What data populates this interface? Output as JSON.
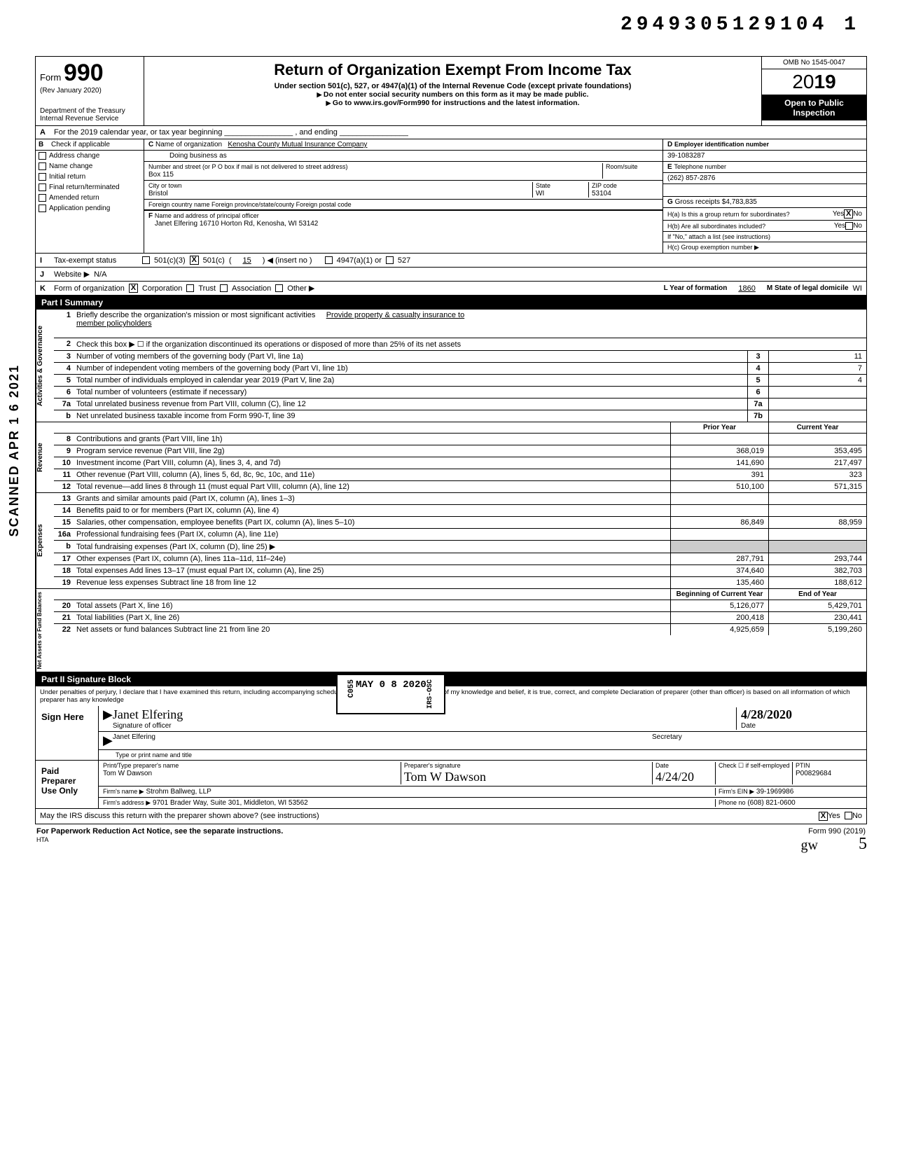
{
  "doc_id": "2949305129104 1",
  "form": {
    "number": "990",
    "prefix": "Form",
    "rev": "(Rev January 2020)",
    "dept": "Department of the Treasury",
    "irs": "Internal Revenue Service"
  },
  "header": {
    "title": "Return of Organization Exempt From Income Tax",
    "sub1": "Under section 501(c), 527, or 4947(a)(1) of the Internal Revenue Code (except private foundations)",
    "sub2": "Do not enter social security numbers on this form as it may be made public.",
    "sub3": "Go to www.irs.gov/Form990 for instructions and the latest information.",
    "omb": "OMB No 1545-0047",
    "year_outline": "20",
    "year_bold": "19",
    "open1": "Open to Public",
    "open2": "Inspection"
  },
  "lineA": "For the 2019 calendar year, or tax year beginning ________________ , and ending ________________",
  "colB": {
    "hdr": "Check if applicable",
    "items": [
      "Address change",
      "Name change",
      "Initial return",
      "Final return/terminated",
      "Amended return",
      "Application pending"
    ],
    "letter": "B"
  },
  "colC": {
    "letter": "C",
    "name_lbl": "Name of organization",
    "name": "Kenosha County Mutual Insurance Company",
    "dba_lbl": "Doing business as",
    "addr_lbl": "Number and street (or P O box if mail is not delivered to street address)",
    "room_lbl": "Room/suite",
    "addr": "Box 115",
    "city_lbl": "City or town",
    "city": "Bristol",
    "state_lbl": "State",
    "state": "WI",
    "zip_lbl": "ZIP code",
    "zip": "53104",
    "foreign_lbl": "Foreign country name        Foreign province/state/county        Foreign postal code",
    "F_lbl": "Name and address of principal officer",
    "F_letter": "F",
    "F_val": "Janet Elfering 16710 Horton Rd, Kenosha, WI  53142"
  },
  "colD": {
    "D": "D",
    "ein_lbl": "Employer identification number",
    "ein": "39-1083287",
    "E": "E",
    "tel_lbl": "Telephone number",
    "tel": "(262) 857-2876",
    "G": "G",
    "gross_lbl": "Gross receipts $",
    "gross": "4,783,835",
    "Ha_lbl": "H(a) Is this a group return for subordinates?",
    "Ha_yes": "Yes",
    "Ha_X": "X",
    "Ha_no": "No",
    "Hb_lbl": "H(b) Are all subordinates included?",
    "Hb_yes": "Yes",
    "Hb_no": "No",
    "Hb_note": "If \"No,\" attach a list (see instructions)",
    "Hc_lbl": "H(c) Group exemption number ▶"
  },
  "rowI": {
    "letter": "I",
    "lbl": "Tax-exempt status",
    "opt1": "501(c)(3)",
    "opt2_X": "X",
    "opt2": "501(c)",
    "opt2_num": "15",
    "opt2_tail": ") ◀ (insert no )",
    "opt3": "4947(a)(1) or",
    "opt4": "527"
  },
  "rowJ": {
    "letter": "J",
    "lbl": "Website ▶",
    "val": "N/A"
  },
  "rowK": {
    "letter": "K",
    "lbl": "Form of organization",
    "corp_X": "X",
    "corp": "Corporation",
    "trust": "Trust",
    "assoc": "Association",
    "other": "Other ▶",
    "L_lbl": "L Year of formation",
    "L_val": "1860",
    "M_lbl": "M State of legal domicile",
    "M_val": "WI"
  },
  "part1": {
    "title": "Part I    Summary",
    "sections": {
      "gov": {
        "label": "Activities & Governance",
        "lines": [
          {
            "n": "1",
            "t": "Briefly describe the organization's mission or most significant activities",
            "tail": "Provide property & casualty insurance to",
            "tail2": "member policyholders"
          },
          {
            "n": "2",
            "t": "Check this box ▶ ☐ if the organization discontinued its operations or disposed of more than 25% of its net assets"
          },
          {
            "n": "3",
            "t": "Number of voting members of the governing body (Part VI, line 1a)",
            "box": "3",
            "val": "11"
          },
          {
            "n": "4",
            "t": "Number of independent voting members of the governing body (Part VI, line 1b)",
            "box": "4",
            "val": "7"
          },
          {
            "n": "5",
            "t": "Total number of individuals employed in calendar year 2019 (Part V, line 2a)",
            "box": "5",
            "val": "4"
          },
          {
            "n": "6",
            "t": "Total number of volunteers (estimate if necessary)",
            "box": "6",
            "val": ""
          },
          {
            "n": "7a",
            "t": "Total unrelated business revenue from Part VIII, column (C), line 12",
            "box": "7a",
            "val": ""
          },
          {
            "n": "b",
            "t": "Net unrelated business taxable income from Form 990-T, line 39",
            "box": "7b",
            "val": ""
          }
        ]
      },
      "rev": {
        "label": "Revenue",
        "hdr_prior": "Prior Year",
        "hdr_curr": "Current Year",
        "lines": [
          {
            "n": "8",
            "t": "Contributions and grants (Part VIII, line 1h)",
            "p": "",
            "c": ""
          },
          {
            "n": "9",
            "t": "Program service revenue (Part VIII, line 2g)",
            "p": "368,019",
            "c": "353,495"
          },
          {
            "n": "10",
            "t": "Investment income (Part VIII, column (A), lines 3, 4, and 7d)",
            "p": "141,690",
            "c": "217,497"
          },
          {
            "n": "11",
            "t": "Other revenue (Part VIII, column (A), lines 5, 6d, 8c, 9c, 10c, and 11e)",
            "p": "391",
            "c": "323"
          },
          {
            "n": "12",
            "t": "Total revenue—add lines 8 through 11 (must equal Part VIII, column (A), line 12)",
            "p": "510,100",
            "c": "571,315"
          }
        ]
      },
      "exp": {
        "label": "Expenses",
        "lines": [
          {
            "n": "13",
            "t": "Grants and similar amounts paid (Part IX, column (A), lines 1–3)",
            "p": "",
            "c": ""
          },
          {
            "n": "14",
            "t": "Benefits paid to or for members (Part IX, column (A), line 4)",
            "p": "",
            "c": ""
          },
          {
            "n": "15",
            "t": "Salaries, other compensation, employee benefits (Part IX, column (A), lines 5–10)",
            "p": "86,849",
            "c": "88,959"
          },
          {
            "n": "16a",
            "t": "Professional fundraising fees (Part IX, column (A), line 11e)",
            "p": "",
            "c": ""
          },
          {
            "n": "b",
            "t": "Total fundraising expenses (Part IX, column (D), line 25) ▶",
            "shaded": true
          },
          {
            "n": "17",
            "t": "Other expenses (Part IX, column (A), lines 11a–11d, 11f–24e)",
            "p": "287,791",
            "c": "293,744"
          },
          {
            "n": "18",
            "t": "Total expenses Add lines 13–17 (must equal Part IX, column (A), line 25)",
            "p": "374,640",
            "c": "382,703"
          },
          {
            "n": "19",
            "t": "Revenue less expenses Subtract line 18 from line 12",
            "p": "135,460",
            "c": "188,612"
          }
        ]
      },
      "net": {
        "label": "Net Assets or\nFund Balances",
        "hdr_beg": "Beginning of Current Year",
        "hdr_end": "End of Year",
        "lines": [
          {
            "n": "20",
            "t": "Total assets (Part X, line 16)",
            "p": "5,126,077",
            "c": "5,429,701"
          },
          {
            "n": "21",
            "t": "Total liabilities (Part X, line 26)",
            "p": "200,418",
            "c": "230,441"
          },
          {
            "n": "22",
            "t": "Net assets or fund balances Subtract line 21 from line 20",
            "p": "4,925,659",
            "c": "5,199,260"
          }
        ]
      }
    }
  },
  "part2": {
    "title": "Part II    Signature Block",
    "decl": "Under penalties of perjury, I declare that I have examined this return, including accompanying schedules and statements, and to the best of my knowledge and belief, it is true, correct, and complete Declaration of preparer (other than officer) is based on all information of which preparer has any knowledge"
  },
  "sign": {
    "lbl": "Sign Here",
    "sig_img": "Janet Elfering (signature)",
    "sig_lbl": "Signature of officer",
    "date": "4/28/2020",
    "date_lbl": "Date",
    "name": "Janet Elfering",
    "title": "Secretary",
    "name_lbl": "Type or print name and title"
  },
  "prep": {
    "lbl": "Paid Preparer Use Only",
    "col1": "Print/Type preparer's name",
    "col2": "Preparer's signature",
    "col3": "Date",
    "col4": "Check ☐ if self-employed",
    "col5": "PTIN",
    "name": "Tom W Dawson",
    "sig": "Tom W Dawson (sig)",
    "date": "4/24/20",
    "ptin": "P00829684",
    "firm_lbl": "Firm's name ▶",
    "firm": "Strohm Ballweg, LLP",
    "ein_lbl": "Firm's EIN ▶",
    "ein": "39-1969986",
    "addr_lbl": "Firm's address ▶",
    "addr": "9701 Brader Way, Suite 301, Middleton, WI 53562",
    "phone_lbl": "Phone no",
    "phone": "(608) 821-0600"
  },
  "discuss": {
    "q": "May the IRS discuss this return with the preparer shown above? (see instructions)",
    "yes_X": "X",
    "yes": "Yes",
    "no": "No"
  },
  "footer": {
    "left": "For Paperwork Reduction Act Notice, see the separate instructions.",
    "hta": "HTA",
    "right": "Form 990 (2019)"
  },
  "sidetext": "SCANNED APR 1 6 2021",
  "stamp": {
    "l1": "C055",
    "l2": "MAY 0 8 2020",
    "l3": "IRS-OSC"
  },
  "scribble": "gw",
  "scribble2": "5"
}
